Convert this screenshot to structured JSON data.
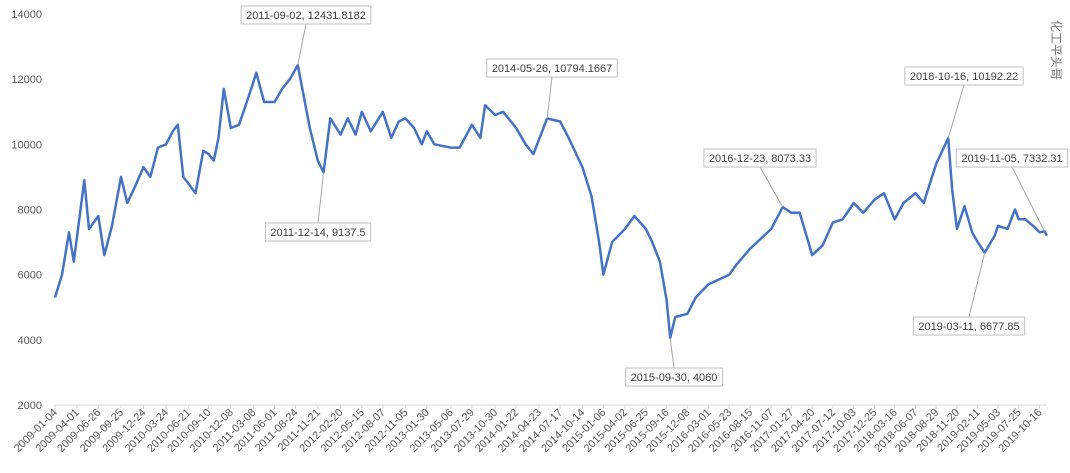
{
  "chart_data": {
    "type": "line",
    "watermark": "化工平头哥",
    "xlim": [
      "2009-01-04",
      "2019-11-15"
    ],
    "ylim": [
      2000,
      14000
    ],
    "yticks": [
      2000,
      4000,
      6000,
      8000,
      10000,
      12000,
      14000
    ],
    "xticks": [
      "2009-01-04",
      "2009-04-01",
      "2009-06-26",
      "2009-09-25",
      "2009-12-24",
      "2010-03-24",
      "2010-06-21",
      "2010-09-10",
      "2010-12-08",
      "2011-03-08",
      "2011-06-01",
      "2011-08-24",
      "2011-11-21",
      "2012-02-20",
      "2012-05-15",
      "2012-08-07",
      "2012-11-05",
      "2013-01-30",
      "2013-05-06",
      "2013-07-29",
      "2013-10-30",
      "2014-01-22",
      "2014-04-23",
      "2014-07-17",
      "2014-10-14",
      "2015-01-06",
      "2015-04-02",
      "2015-06-25",
      "2015-09-16",
      "2015-12-08",
      "2016-03-01",
      "2016-05-23",
      "2016-08-15",
      "2016-11-07",
      "2017-01-27",
      "2017-04-20",
      "2017-07-12",
      "2017-10-03",
      "2017-12-25",
      "2018-03-16",
      "2018-06-07",
      "2018-08-29",
      "2018-11-20",
      "2019-02-11",
      "2019-05-03",
      "2019-07-25",
      "2019-10-16"
    ],
    "grid": false,
    "x": [
      "2009-01-04",
      "2009-02-01",
      "2009-03-01",
      "2009-03-20",
      "2009-05-01",
      "2009-05-20",
      "2009-06-26",
      "2009-07-20",
      "2009-08-20",
      "2009-09-25",
      "2009-10-20",
      "2009-11-20",
      "2009-12-24",
      "2010-01-20",
      "2010-02-20",
      "2010-03-24",
      "2010-04-20",
      "2010-05-10",
      "2010-06-01",
      "2010-06-21",
      "2010-07-20",
      "2010-08-20",
      "2010-09-10",
      "2010-10-01",
      "2010-10-20",
      "2010-11-10",
      "2010-12-08",
      "2011-01-10",
      "2011-02-10",
      "2011-03-08",
      "2011-03-20",
      "2011-04-20",
      "2011-06-01",
      "2011-07-01",
      "2011-08-01",
      "2011-09-02",
      "2011-09-25",
      "2011-10-20",
      "2011-11-21",
      "2011-12-14",
      "2012-01-10",
      "2012-02-20",
      "2012-03-20",
      "2012-04-20",
      "2012-05-15",
      "2012-06-20",
      "2012-08-07",
      "2012-09-10",
      "2012-10-10",
      "2012-11-05",
      "2012-12-10",
      "2013-01-10",
      "2013-01-30",
      "2013-03-01",
      "2013-05-06",
      "2013-06-10",
      "2013-07-29",
      "2013-09-01",
      "2013-09-20",
      "2013-10-30",
      "2013-12-01",
      "2014-01-22",
      "2014-03-01",
      "2014-04-01",
      "2014-05-26",
      "2014-07-17",
      "2014-08-20",
      "2014-10-14",
      "2014-11-20",
      "2014-12-20",
      "2015-01-06",
      "2015-02-10",
      "2015-04-02",
      "2015-05-10",
      "2015-06-25",
      "2015-07-20",
      "2015-08-20",
      "2015-09-16",
      "2015-09-30",
      "2015-10-20",
      "2015-12-08",
      "2016-01-10",
      "2016-03-01",
      "2016-05-23",
      "2016-06-20",
      "2016-08-15",
      "2016-11-07",
      "2016-12-23",
      "2017-01-27",
      "2017-03-01",
      "2017-04-20",
      "2017-06-01",
      "2017-07-12",
      "2017-08-20",
      "2017-10-03",
      "2017-11-10",
      "2017-12-25",
      "2018-02-01",
      "2018-03-16",
      "2018-04-20",
      "2018-06-07",
      "2018-07-10",
      "2018-08-29",
      "2018-10-16",
      "2018-11-01",
      "2018-11-20",
      "2018-12-20",
      "2019-01-20",
      "2019-02-11",
      "2019-03-11",
      "2019-04-20",
      "2019-05-03",
      "2019-06-10",
      "2019-07-10",
      "2019-07-25",
      "2019-08-20",
      "2019-09-20",
      "2019-10-16",
      "2019-11-05",
      "2019-11-15"
    ],
    "series": [
      {
        "color": "#4472c4",
        "values": [
          5300,
          6000,
          7300,
          6400,
          8900,
          7400,
          7800,
          6600,
          7500,
          9000,
          8200,
          8700,
          9300,
          9000,
          9900,
          10000,
          10400,
          10600,
          9000,
          8800,
          8500,
          9800,
          9700,
          9500,
          10200,
          11700,
          10500,
          10600,
          11300,
          11900,
          12200,
          11300,
          11300,
          11700,
          12000,
          12431.8182,
          11500,
          10500,
          9500,
          9137.5,
          10800,
          10300,
          10800,
          10300,
          11000,
          10400,
          11000,
          10200,
          10700,
          10800,
          10500,
          10000,
          10400,
          10000,
          9900,
          9900,
          10600,
          10200,
          11200,
          10900,
          11000,
          10500,
          10000,
          9700,
          10794.1667,
          10700,
          10200,
          9300,
          8400,
          7000,
          6000,
          7000,
          7400,
          7800,
          7400,
          7000,
          6400,
          5200,
          4060,
          4700,
          4800,
          5300,
          5700,
          6000,
          6300,
          6800,
          7400,
          8073.33,
          7900,
          7900,
          6600,
          6900,
          7600,
          7700,
          8200,
          7900,
          8300,
          8500,
          7700,
          8200,
          8500,
          8200,
          9400,
          10192.22,
          8600,
          7400,
          8100,
          7300,
          7000,
          6677.85,
          7200,
          7500,
          7400,
          8000,
          7700,
          7700,
          7500,
          7300,
          7332.31,
          7200
        ]
      }
    ],
    "annotations": [
      {
        "x": "2011-09-02",
        "y": 12431.8182,
        "label": "2011-09-02, 12431.8182"
      },
      {
        "x": "2011-12-14",
        "y": 9137.5,
        "label": "2011-12-14, 9137.5"
      },
      {
        "x": "2014-05-26",
        "y": 10794.1667,
        "label": "2014-05-26, 10794.1667"
      },
      {
        "x": "2015-09-30",
        "y": 4060,
        "label": "2015-09-30, 4060"
      },
      {
        "x": "2016-12-23",
        "y": 8073.33,
        "label": "2016-12-23, 8073.33"
      },
      {
        "x": "2018-10-16",
        "y": 10192.22,
        "label": "2018-10-16, 10192.22"
      },
      {
        "x": "2019-11-05",
        "y": 7332.31,
        "label": "2019-11-05, 7332.31"
      },
      {
        "x": "2019-03-11",
        "y": 6677.85,
        "label": "2019-03-11, 6677.85"
      }
    ]
  }
}
